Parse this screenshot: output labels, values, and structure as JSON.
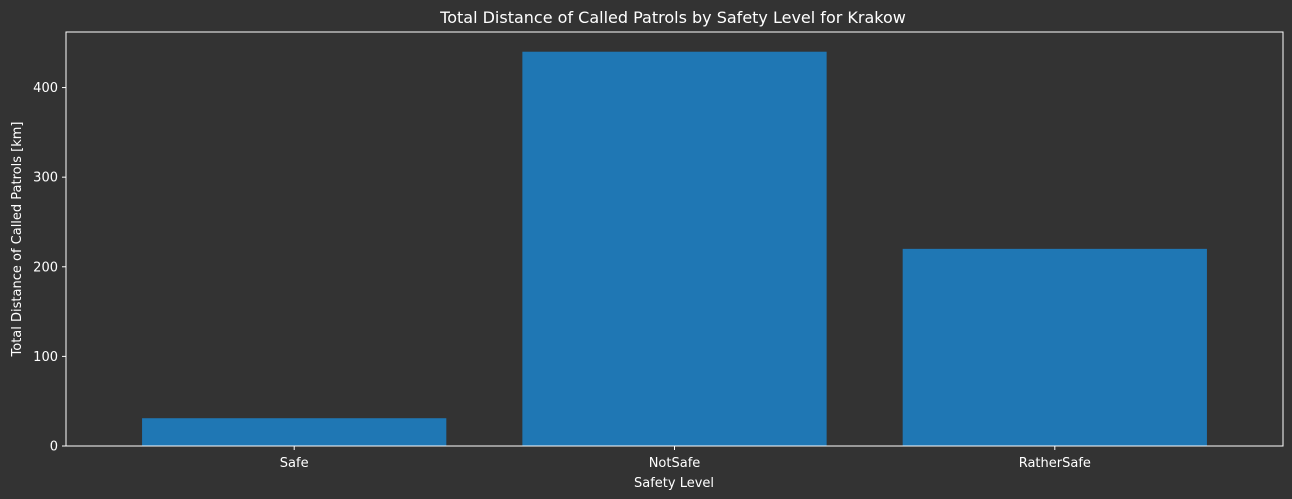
{
  "chart_data": {
    "type": "bar",
    "title": "Total Distance of Called Patrols by Safety Level for Krakow",
    "xlabel": "Safety Level",
    "ylabel": "Total Distance of Called Patrols [km]",
    "categories": [
      "Safe",
      "NotSafe",
      "RatherSafe"
    ],
    "values": [
      31,
      440,
      220
    ],
    "ylim": [
      0,
      462
    ],
    "yticks": [
      0,
      100,
      200,
      300,
      400
    ],
    "grid": false,
    "colors": {
      "background": "#333333",
      "bar": "#1f77b4",
      "axis": "#ffffff",
      "text": "#ffffff"
    }
  }
}
